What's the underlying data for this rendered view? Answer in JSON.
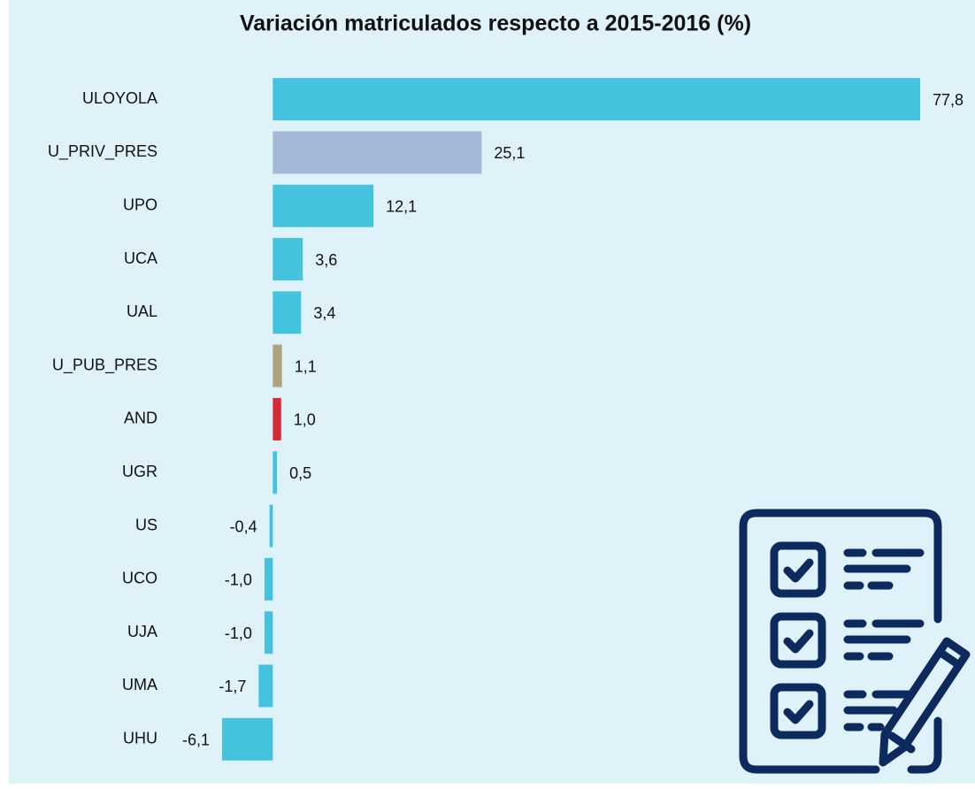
{
  "chart_data": {
    "type": "bar",
    "orientation": "horizontal",
    "title": "Variación matriculados respecto a 2015-2016 (%)",
    "categories": [
      "ULOYOLA",
      "U_PRIV_PRES",
      "UPO",
      "UCA",
      "UAL",
      "U_PUB_PRES",
      "AND",
      "UGR",
      "US",
      "UCO",
      "UJA",
      "UMA",
      "UHU"
    ],
    "values": [
      77.8,
      25.1,
      12.1,
      3.6,
      3.4,
      1.1,
      1.0,
      0.5,
      -0.4,
      -1.0,
      -1.0,
      -1.7,
      -6.1
    ],
    "value_labels": [
      "77,8",
      "25,1",
      "12,1",
      "3,6",
      "3,4",
      "1,1",
      "1,0",
      "0,5",
      "-0,4",
      "-1,0",
      "-1,0",
      "-1,7",
      "-6,1"
    ],
    "colors": [
      "#45c3de",
      "#a3b8d6",
      "#45c3de",
      "#45c3de",
      "#45c3de",
      "#b0a27c",
      "#d42c36",
      "#45c3de",
      "#45c3de",
      "#45c3de",
      "#45c3de",
      "#45c3de",
      "#45c3de"
    ]
  }
}
